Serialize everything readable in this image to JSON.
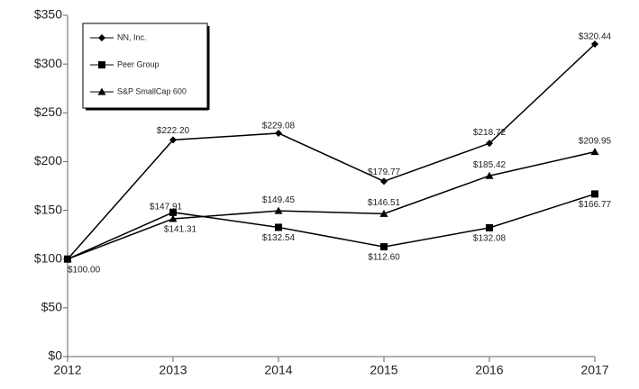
{
  "chart_data": {
    "type": "line",
    "x": [
      2012,
      2013,
      2014,
      2015,
      2016,
      2017
    ],
    "xlim": [
      2012,
      2017
    ],
    "xticks": [
      2012,
      2013,
      2014,
      2015,
      2016,
      2017
    ],
    "ylim": [
      0,
      350
    ],
    "yticks": [
      {
        "value": 0,
        "label": "$0"
      },
      {
        "value": 50,
        "label": "$50"
      },
      {
        "value": 100,
        "label": "$100"
      },
      {
        "value": 150,
        "label": "$150"
      },
      {
        "value": 200,
        "label": "$200"
      },
      {
        "value": 250,
        "label": "$250"
      },
      {
        "value": 300,
        "label": "$300"
      },
      {
        "value": 350,
        "label": "$350"
      }
    ],
    "grid": false,
    "legend": "upper left",
    "series": [
      {
        "name": "NN, Inc.",
        "color": "#000000",
        "marker": "diamond",
        "values": [
          100,
          222.2,
          229.08,
          179.77,
          218.72,
          320.44
        ],
        "value_labels": [
          "$100.00",
          "$222.20",
          "$229.08",
          "$179.77",
          "$218.72",
          "$320.44"
        ]
      },
      {
        "name": "Peer Group",
        "color": "#000000",
        "marker": "square",
        "values": [
          100,
          147.91,
          132.54,
          112.6,
          132.08,
          166.77
        ],
        "value_labels": [
          null,
          "$147.91",
          "$132.54",
          "$112.60",
          "$132.08",
          "$166.77"
        ]
      },
      {
        "name": "S&P SmallCap 600",
        "color": "#000000",
        "marker": "triangle",
        "values": [
          100,
          141.31,
          149.45,
          146.51,
          185.42,
          209.95
        ],
        "value_labels": [
          null,
          "$141.31",
          "$149.45",
          "$146.51",
          "$185.42",
          "$209.95"
        ]
      }
    ]
  }
}
